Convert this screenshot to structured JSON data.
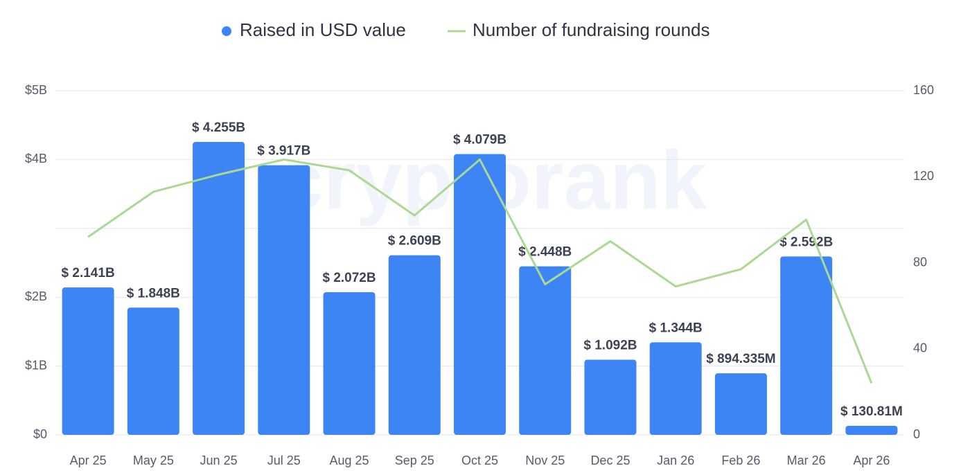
{
  "chart_data": {
    "type": "bar_line",
    "watermark": "cryptorank",
    "categories": [
      "Apr 25",
      "May 25",
      "Jun 25",
      "Jul 25",
      "Aug 25",
      "Sep 25",
      "Oct 25",
      "Nov 25",
      "Dec 25",
      "Jan 26",
      "Feb 26",
      "Mar 26",
      "Apr 26"
    ],
    "series": [
      {
        "name": "Raised in USD value",
        "type": "bar",
        "color": "#3d85f5",
        "values": [
          2141000000,
          1848000000,
          4255000000,
          3917000000,
          2072000000,
          2609000000,
          4079000000,
          2448000000,
          1092000000,
          1344000000,
          894335000,
          2592000000,
          130810000
        ],
        "value_labels": [
          "$ 2.141B",
          "$ 1.848B",
          "$ 4.255B",
          "$ 3.917B",
          "$ 2.072B",
          "$ 2.609B",
          "$ 4.079B",
          "$ 2.448B",
          "$ 1.092B",
          "$ 1.344B",
          "$ 894.335M",
          "$ 2.592B",
          "$ 130.81M"
        ]
      },
      {
        "name": "Number of fundraising rounds",
        "type": "line",
        "axis": "y2",
        "color": "#a9d992",
        "values": [
          92,
          113,
          121,
          128,
          123,
          102,
          128,
          70,
          90,
          69,
          77,
          100,
          24
        ]
      }
    ],
    "ylim": [
      0,
      5000000000
    ],
    "yticks": [
      {
        "value": 0,
        "label": "$0"
      },
      {
        "value": 1000000000,
        "label": "$1B"
      },
      {
        "value": 2000000000,
        "label": "$2B"
      },
      {
        "value": 3000000000,
        "label": ""
      },
      {
        "value": 4000000000,
        "label": "$4B"
      },
      {
        "value": 5000000000,
        "label": "$5B"
      }
    ],
    "y2lim": [
      0,
      160
    ],
    "y2ticks": [
      0,
      40,
      80,
      120,
      160
    ],
    "grid": true
  }
}
